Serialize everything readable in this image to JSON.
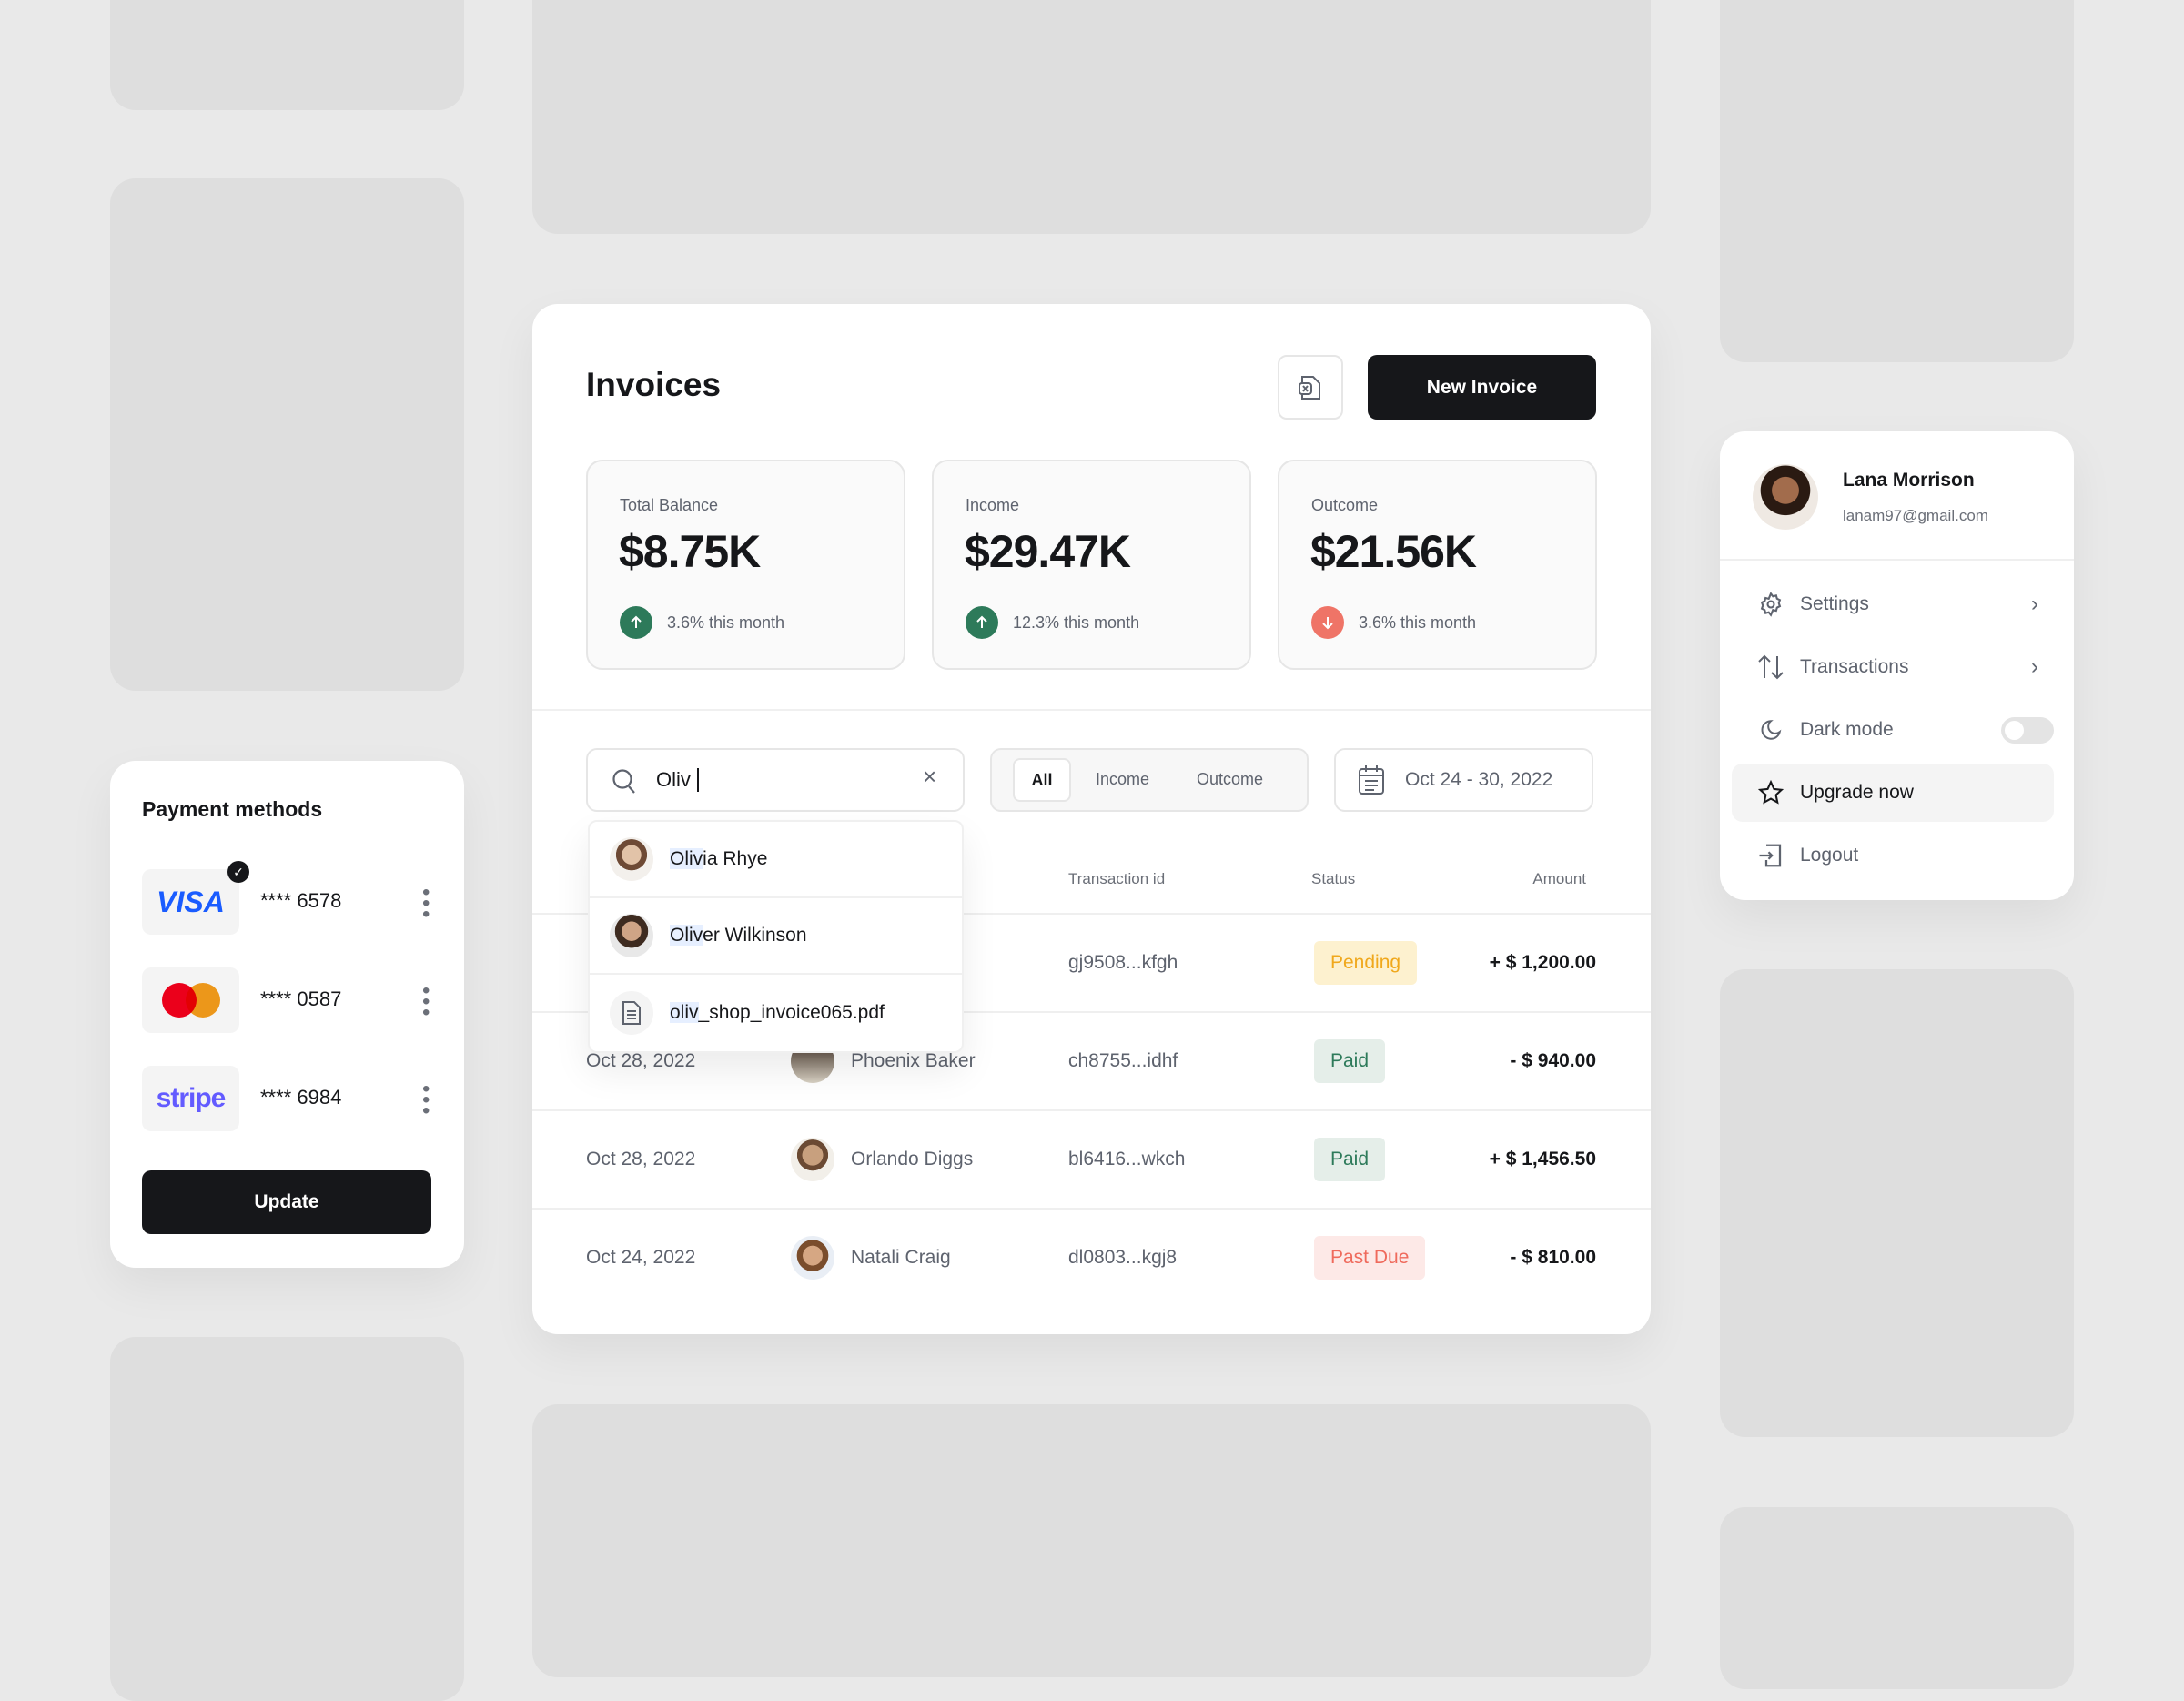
{
  "invoices": {
    "title": "Invoices",
    "export_icon": "excel-export-icon",
    "new_invoice_label": "New Invoice",
    "stats": [
      {
        "label": "Total Balance",
        "value": "$8.75K",
        "trend": "3.6% this month",
        "direction": "up",
        "color": "#2d7a5a"
      },
      {
        "label": "Income",
        "value": "$29.47K",
        "trend": "12.3% this month",
        "direction": "up",
        "color": "#2d7a5a"
      },
      {
        "label": "Outcome",
        "value": "$21.56K",
        "trend": "3.6% this month",
        "direction": "down",
        "color": "#ef7467"
      }
    ],
    "search": {
      "value": "Oliv"
    },
    "filters": [
      "All",
      "Income",
      "Outcome"
    ],
    "active_filter": "All",
    "date_range": "Oct 24 - 30, 2022",
    "suggestions": [
      {
        "match": "Oliv",
        "rest": "ia Rhye",
        "type": "person"
      },
      {
        "match": "Oliv",
        "rest": "er Wilkinson",
        "type": "person"
      },
      {
        "match": "oliv",
        "rest": "_shop_invoice065.pdf",
        "type": "file"
      }
    ],
    "columns": {
      "transaction": "Transaction id",
      "status": "Status",
      "amount": "Amount"
    },
    "rows": [
      {
        "date": "",
        "name": "",
        "tx": "gj9508...kfgh",
        "status": "Pending",
        "amount": "+ $ 1,200.00"
      },
      {
        "date": "Oct 28, 2022",
        "name": "Phoenix Baker",
        "tx": "ch8755...idhf",
        "status": "Paid",
        "amount": "- $ 940.00"
      },
      {
        "date": "Oct 28, 2022",
        "name": "Orlando Diggs",
        "tx": "bl6416...wkch",
        "status": "Paid",
        "amount": "+ $ 1,456.50"
      },
      {
        "date": "Oct 24, 2022",
        "name": "Natali Craig",
        "tx": "dl0803...kgj8",
        "status": "Past Due",
        "amount": "- $ 810.00"
      }
    ],
    "status_colors": {
      "Pending": {
        "bg": "#fdf1cf",
        "fg": "#f0a81c"
      },
      "Paid": {
        "bg": "#e5eee9",
        "fg": "#2d7a5a"
      },
      "Past Due": {
        "bg": "#fde9e7",
        "fg": "#ef6a5c"
      }
    }
  },
  "payment": {
    "title": "Payment methods",
    "cards": [
      {
        "brand": "VISA",
        "number": "**** 6578",
        "selected": true
      },
      {
        "brand": "mastercard",
        "number": "**** 0587",
        "selected": false
      },
      {
        "brand": "stripe",
        "number": "**** 6984",
        "selected": false
      }
    ],
    "update_label": "Update"
  },
  "profile": {
    "name": "Lana Morrison",
    "email": "lanam97@gmail.com",
    "menu": [
      {
        "label": "Settings",
        "icon": "gear-icon"
      },
      {
        "label": "Transactions",
        "icon": "arrows-up-down-icon"
      },
      {
        "label": "Dark mode",
        "icon": "moon-icon",
        "toggle": false
      },
      {
        "label": "Upgrade now",
        "icon": "star-icon",
        "highlighted": true
      },
      {
        "label": "Logout",
        "icon": "logout-icon"
      }
    ]
  }
}
